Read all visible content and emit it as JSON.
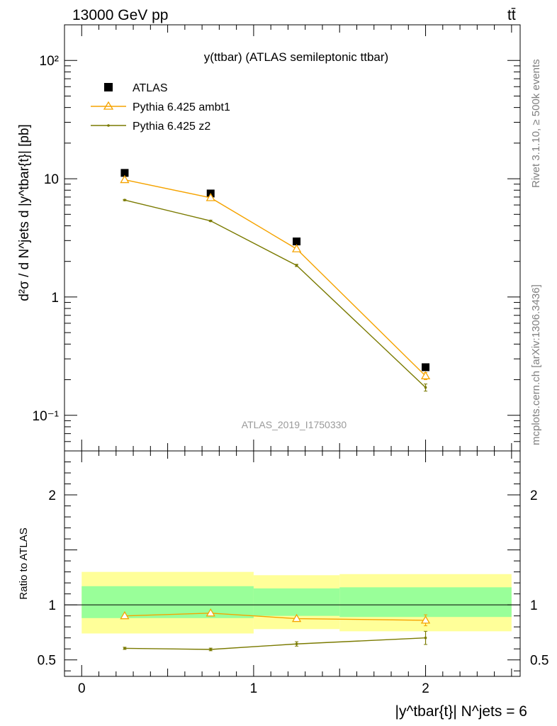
{
  "header": {
    "left": "13000 GeV pp",
    "right": "tt̄"
  },
  "side_notes": {
    "top": "Rivet 3.1.10, ≥ 500k events",
    "bottom": "mcplots.cern.ch [arXiv:1306.3436]"
  },
  "chart_data": [
    {
      "type": "scatter",
      "panel": "main",
      "title": "y(ttbar) (ATLAS semileptonic ttbar)",
      "watermark": "ATLAS_2019_I1750330",
      "ylabel": "d²σ / d N^jets d |y^tbar{t}| [pb]",
      "yscale": "log",
      "ylim": [
        0.05,
        200
      ],
      "xlim": [
        -0.1,
        2.55
      ],
      "ytick_labels": [
        "10⁻¹",
        "1",
        "10",
        "10²"
      ],
      "legend_position": "top-left",
      "series": [
        {
          "name": "ATLAS",
          "color": "#000000",
          "marker": "square",
          "x": [
            0.25,
            0.75,
            1.25,
            2.0
          ],
          "y": [
            11.2,
            7.5,
            2.95,
            0.255
          ]
        },
        {
          "name": "Pythia 6.425 ambt1",
          "color": "#f5a300",
          "marker": "triangle",
          "x": [
            0.25,
            0.75,
            1.25,
            2.0
          ],
          "y": [
            9.8,
            6.9,
            2.55,
            0.215
          ],
          "err": [
            0.1,
            0.1,
            0.05,
            0.015
          ]
        },
        {
          "name": "Pythia 6.425 z2",
          "color": "#7a7a00",
          "marker": "dot",
          "x": [
            0.25,
            0.75,
            1.25,
            2.0
          ],
          "y": [
            6.6,
            4.4,
            1.85,
            0.172
          ],
          "err": [
            0.08,
            0.06,
            0.04,
            0.012
          ]
        }
      ]
    },
    {
      "type": "line",
      "panel": "ratio",
      "ylabel": "Ratio to ATLAS",
      "xlabel": "|y^tbar{t}| N^jets = 6",
      "ylim": [
        0.35,
        2.4
      ],
      "xlim": [
        -0.1,
        2.55
      ],
      "xtick_labels": [
        "0",
        "1",
        "2"
      ],
      "ytick_labels": [
        "0.5",
        "1",
        "2"
      ],
      "bands": {
        "bins": [
          [
            0,
            1
          ],
          [
            1,
            1.5
          ],
          [
            1.5,
            2.5
          ]
        ],
        "yellow": [
          [
            0.74,
            1.3
          ],
          [
            0.78,
            1.27
          ],
          [
            0.76,
            1.28
          ]
        ],
        "green": [
          [
            0.88,
            1.17
          ],
          [
            0.9,
            1.15
          ],
          [
            0.89,
            1.16
          ]
        ],
        "yellow_color": "#ffff99",
        "green_color": "#99ff99"
      },
      "series": [
        {
          "name": "Pythia 6.425 ambt1",
          "color": "#f5a300",
          "marker": "triangle",
          "x": [
            0.25,
            0.75,
            1.25,
            2.0
          ],
          "y": [
            0.9,
            0.925,
            0.875,
            0.86
          ],
          "err": [
            0.01,
            0.012,
            0.018,
            0.05
          ]
        },
        {
          "name": "Pythia 6.425 z2",
          "color": "#7a7a00",
          "marker": "dot",
          "x": [
            0.25,
            0.75,
            1.25,
            2.0
          ],
          "y": [
            0.605,
            0.595,
            0.645,
            0.7
          ],
          "err": [
            0.01,
            0.012,
            0.02,
            0.06
          ]
        }
      ]
    }
  ]
}
